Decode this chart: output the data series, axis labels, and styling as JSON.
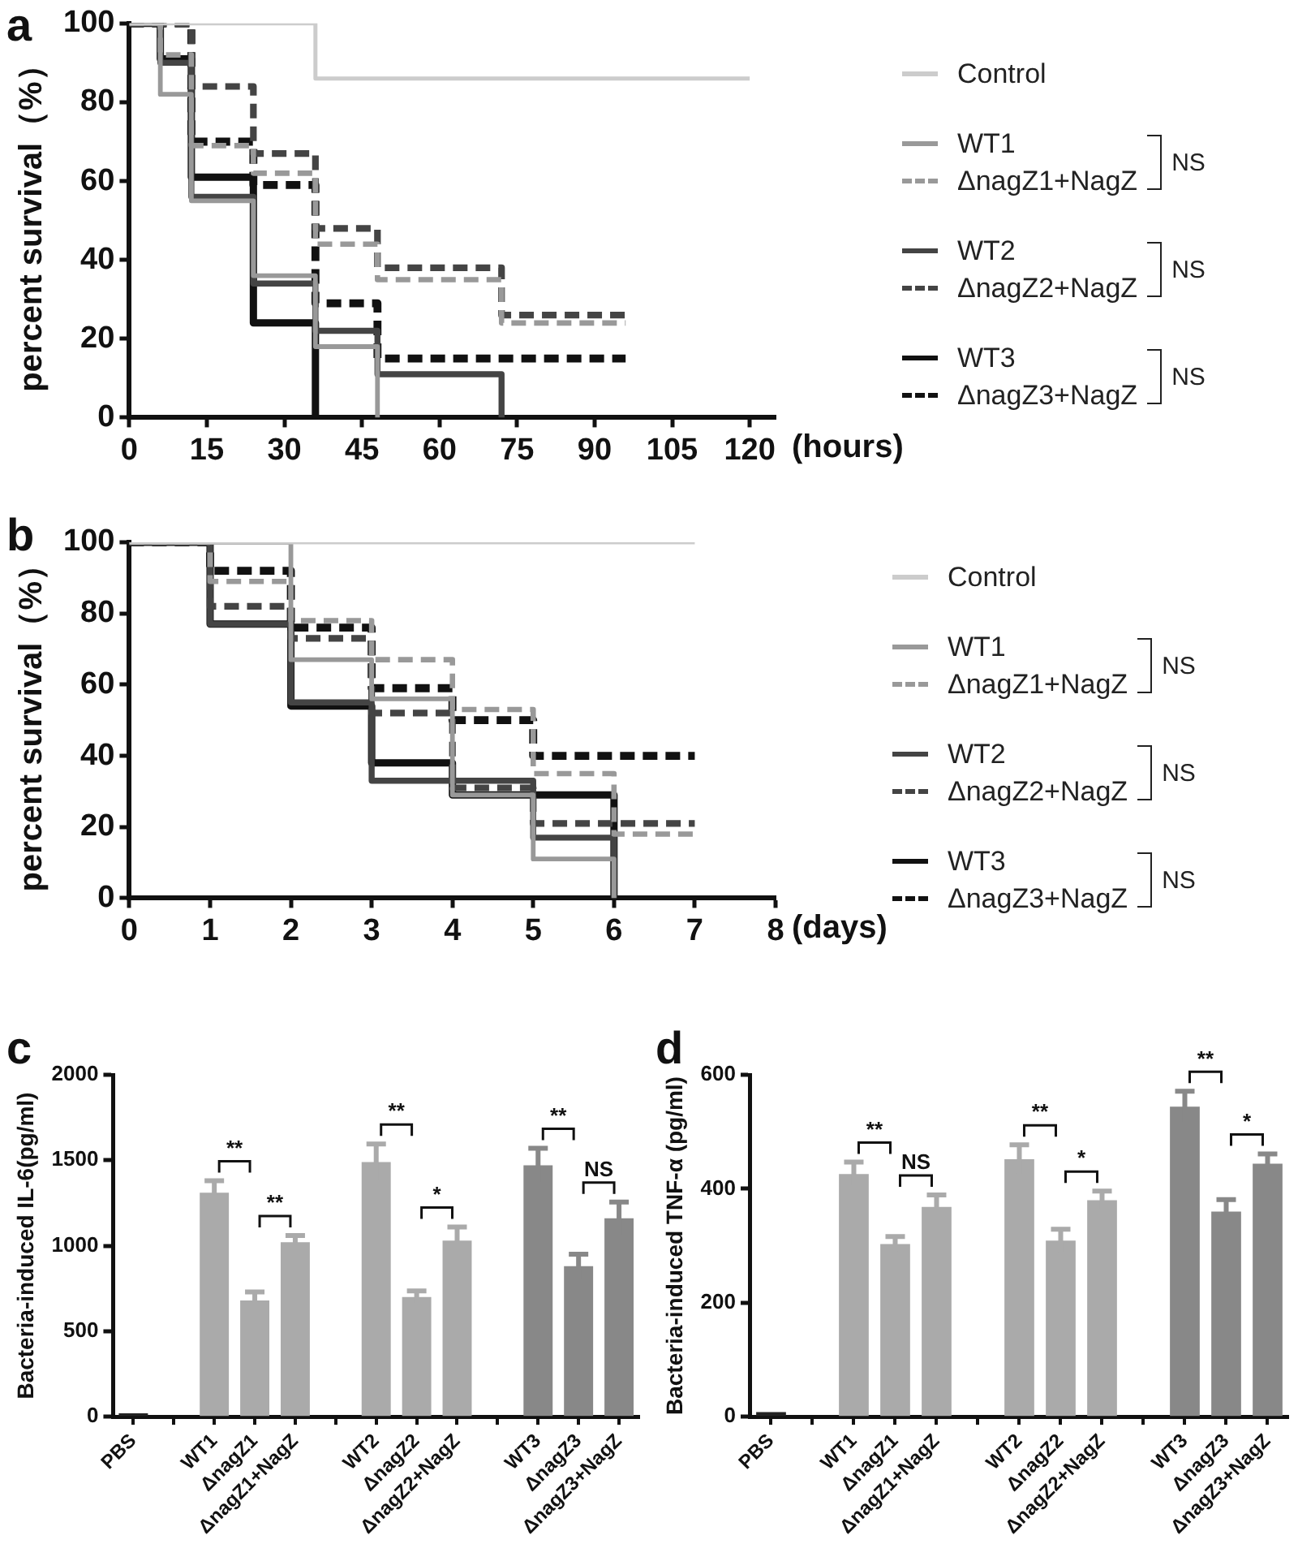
{
  "chart_data": [
    {
      "type": "step",
      "title": "a",
      "xlabel": "(hours)",
      "ylabel": "percent survival（%）",
      "xlim": [
        0,
        125
      ],
      "xticks": [
        0,
        15,
        30,
        45,
        60,
        75,
        90,
        105,
        120
      ],
      "ylim": [
        0,
        100
      ],
      "yticks": [
        0,
        20,
        40,
        60,
        80,
        100
      ],
      "legend": "right",
      "annotations": [
        "NS",
        "NS",
        "NS"
      ],
      "series": [
        {
          "name": "Control",
          "color": "#cccccc",
          "line_style": "solid",
          "x": [
            0,
            36,
            120
          ],
          "values": [
            100,
            86,
            86
          ]
        },
        {
          "name": "WT1",
          "color": "#999999",
          "line_style": "solid",
          "x": [
            0,
            6,
            12,
            24,
            36,
            48
          ],
          "values": [
            100,
            82,
            55,
            36,
            18,
            0
          ]
        },
        {
          "name": "ΔnagZ1+NagZ",
          "color": "#999999",
          "line_style": "dashed",
          "x": [
            0,
            6,
            12,
            24,
            36,
            48,
            72,
            96
          ],
          "values": [
            100,
            92,
            69,
            62,
            44,
            35,
            24,
            24
          ]
        },
        {
          "name": "WT2",
          "color": "#444444",
          "line_style": "solid",
          "x": [
            0,
            6,
            12,
            24,
            36,
            48,
            72
          ],
          "values": [
            100,
            90,
            56,
            34,
            22,
            11,
            0
          ]
        },
        {
          "name": "ΔnagZ2+NagZ",
          "color": "#444444",
          "line_style": "dashed",
          "x": [
            0,
            12,
            24,
            36,
            48,
            72,
            96
          ],
          "values": [
            100,
            84,
            67,
            48,
            38,
            26,
            26
          ]
        },
        {
          "name": "WT3",
          "color": "#111111",
          "line_style": "solid",
          "x": [
            0,
            6,
            12,
            24,
            36
          ],
          "values": [
            100,
            91,
            61,
            24,
            0
          ]
        },
        {
          "name": "ΔnagZ3+NagZ",
          "color": "#111111",
          "line_style": "dashed",
          "x": [
            0,
            12,
            24,
            36,
            48,
            96
          ],
          "values": [
            100,
            70,
            59,
            29,
            15,
            15
          ]
        }
      ]
    },
    {
      "type": "step",
      "title": "b",
      "xlabel": "(days)",
      "ylabel": "percent survival（%）",
      "xlim": [
        0,
        8
      ],
      "xticks": [
        0,
        1,
        2,
        3,
        4,
        5,
        6,
        7,
        8
      ],
      "ylim": [
        0,
        100
      ],
      "yticks": [
        0,
        20,
        40,
        60,
        80,
        100
      ],
      "legend": "right",
      "annotations": [
        "NS",
        "NS",
        "NS"
      ],
      "series": [
        {
          "name": "Control",
          "color": "#cccccc",
          "line_style": "solid",
          "x": [
            0,
            7
          ],
          "values": [
            100,
            100
          ]
        },
        {
          "name": "WT1",
          "color": "#999999",
          "line_style": "solid",
          "x": [
            0,
            2,
            3,
            4,
            5,
            6
          ],
          "values": [
            100,
            67,
            56,
            29,
            11,
            0
          ]
        },
        {
          "name": "ΔnagZ1+NagZ",
          "color": "#999999",
          "line_style": "dashed",
          "x": [
            0,
            1,
            2,
            3,
            4,
            5,
            6,
            7
          ],
          "values": [
            100,
            89,
            78,
            67,
            53,
            35,
            18,
            18
          ]
        },
        {
          "name": "WT2",
          "color": "#444444",
          "line_style": "solid",
          "x": [
            0,
            1,
            2,
            3,
            5,
            6
          ],
          "values": [
            100,
            77,
            55,
            33,
            17,
            0
          ]
        },
        {
          "name": "ΔnagZ2+NagZ",
          "color": "#444444",
          "line_style": "dashed",
          "x": [
            0,
            1,
            2,
            3,
            4,
            5,
            7
          ],
          "values": [
            100,
            82,
            73,
            52,
            31,
            21,
            21
          ]
        },
        {
          "name": "WT3",
          "color": "#111111",
          "line_style": "solid",
          "x": [
            0,
            1,
            2,
            3,
            4,
            6
          ],
          "values": [
            100,
            77,
            54,
            38,
            29,
            0
          ]
        },
        {
          "name": "ΔnagZ3+NagZ",
          "color": "#111111",
          "line_style": "dashed",
          "x": [
            0,
            1,
            2,
            3,
            4,
            5,
            7
          ],
          "values": [
            100,
            92,
            76,
            59,
            50,
            40,
            40
          ]
        }
      ]
    },
    {
      "type": "bar",
      "title": "c",
      "ylabel": "Bacteria-induced IL-6(pg/ml)",
      "ylim": [
        0,
        2000
      ],
      "yticks": [
        0,
        500,
        1000,
        1500,
        2000
      ],
      "categories": [
        "PBS",
        null,
        "WT1",
        "ΔnagZ1",
        "ΔnagZ1+NagZ",
        null,
        "WT2",
        "ΔnagZ2",
        "ΔnagZ2+NagZ",
        null,
        "WT3",
        "ΔnagZ3",
        "ΔnagZ3+NagZ"
      ],
      "values": [
        20,
        null,
        1310,
        680,
        1020,
        null,
        1490,
        700,
        1030,
        null,
        1470,
        880,
        1160
      ],
      "errors": [
        null,
        null,
        70,
        50,
        40,
        null,
        105,
        35,
        80,
        null,
        100,
        70,
        95
      ],
      "colors": [
        "#222222",
        "#ffffff",
        "#aaaaaa",
        "#aaaaaa",
        "#aaaaaa",
        "#ffffff",
        "#aaaaaa",
        "#aaaaaa",
        "#aaaaaa",
        "#ffffff",
        "#888888",
        "#888888",
        "#888888"
      ],
      "annotations": [
        "**",
        "**",
        "**",
        "*",
        "**",
        "NS"
      ]
    },
    {
      "type": "bar",
      "title": "d",
      "ylabel": "Bacteria-induced TNF-α (pg/ml)",
      "ylim": [
        0,
        600
      ],
      "yticks": [
        0,
        200,
        400,
        600
      ],
      "categories": [
        "PBS",
        null,
        "WT1",
        "ΔnagZ1",
        "ΔnagZ1+NagZ",
        null,
        "WT2",
        "ΔnagZ2",
        "ΔnagZ2+NagZ",
        null,
        "WT3",
        "ΔnagZ3",
        "ΔnagZ3+NagZ"
      ],
      "values": [
        8,
        null,
        426,
        303,
        368,
        null,
        452,
        309,
        380,
        null,
        544,
        360,
        444
      ],
      "errors": [
        null,
        null,
        21,
        13,
        21,
        null,
        25,
        20,
        16,
        null,
        27,
        21,
        17
      ],
      "colors": [
        "#222222",
        "#ffffff",
        "#aaaaaa",
        "#aaaaaa",
        "#aaaaaa",
        "#ffffff",
        "#aaaaaa",
        "#aaaaaa",
        "#aaaaaa",
        "#ffffff",
        "#888888",
        "#888888",
        "#888888"
      ],
      "annotations": [
        "**",
        "NS",
        "**",
        "*",
        "**",
        "*"
      ]
    }
  ]
}
